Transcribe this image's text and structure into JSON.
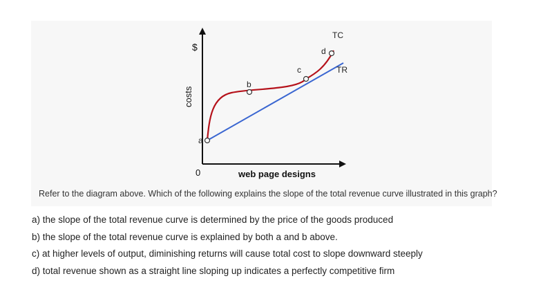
{
  "diagram": {
    "y_axis_symbol": "$",
    "y_axis_label": "costs",
    "x_axis_label": "web page designs",
    "origin_label": "0",
    "curves": [
      {
        "label": "TC",
        "color": "#b5121b"
      },
      {
        "label": "TR",
        "color": "#3a66d1"
      }
    ],
    "points": [
      {
        "label": "a"
      },
      {
        "label": "b"
      },
      {
        "label": "c"
      },
      {
        "label": "d"
      }
    ]
  },
  "question": "Refer to the diagram above. Which of the following explains the slope of the total revenue curve illustrated in this graph?",
  "options": [
    "a) the slope of the total revenue curve is determined by the price of the goods produced",
    "b) the slope of the total revenue curve is explained by both a and b above.",
    "c) at higher levels of output, diminishing returns will cause total cost to slope downward steeply",
    "d) total revenue shown as a straight line sloping up indicates a perfectly competitive firm"
  ]
}
